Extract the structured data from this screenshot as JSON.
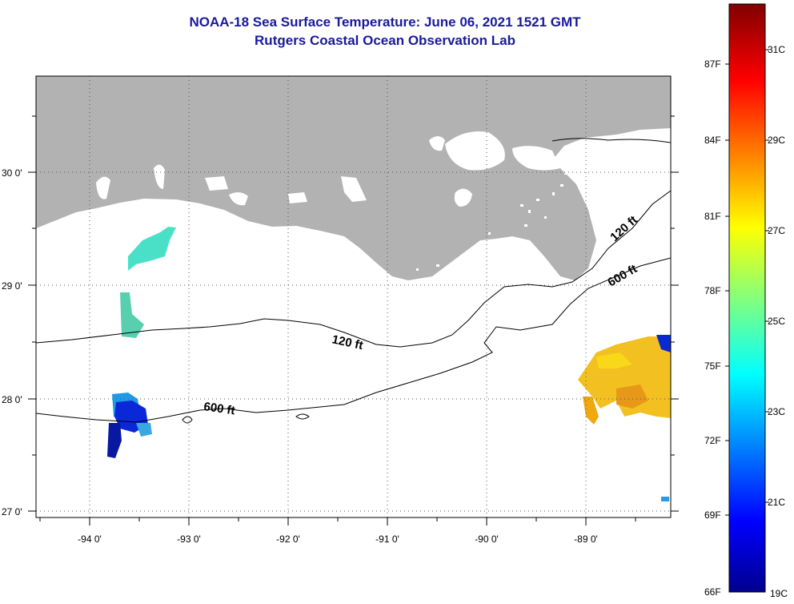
{
  "title": {
    "line1": "NOAA-18 Sea Surface Temperature:  June 06, 2021 1521 GMT",
    "line2": "Rutgers Coastal Ocean Observation Lab"
  },
  "map": {
    "lon_labels": [
      "-94 0'",
      "-93 0'",
      "-92 0'",
      "-91 0'",
      "-90 0'",
      "-89 0'"
    ],
    "lat_labels": [
      "30 0'",
      "29 0'",
      "28 0'",
      "27 0'"
    ],
    "contour_labels": [
      "120 ft",
      "600 ft",
      "120 ft",
      "600 ft"
    ],
    "land_color": "#b2b2b2",
    "grid_style": "dotted"
  },
  "colorbar": {
    "fahrenheit_labels": [
      "87F",
      "84F",
      "81F",
      "78F",
      "75F",
      "72F",
      "69F",
      "66F"
    ],
    "celsius_labels": [
      "31C",
      "29C",
      "27C",
      "25C",
      "23C",
      "21C",
      "19C"
    ],
    "colormap": "jet"
  }
}
